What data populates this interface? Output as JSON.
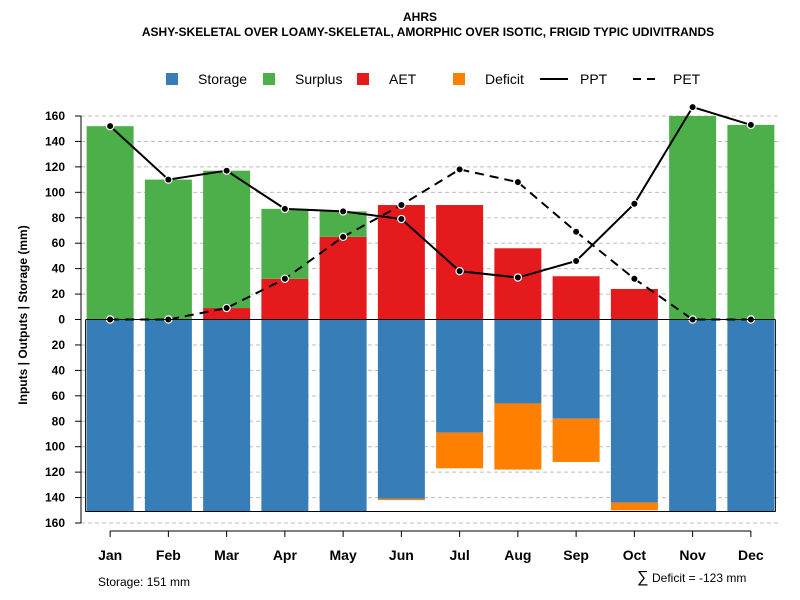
{
  "chart_data": {
    "type": "bar",
    "title": "AHRS",
    "subtitle": "ASHY-SKELETAL OVER LOAMY-SKELETAL, AMORPHIC OVER ISOTIC, FRIGID TYPIC UDIVITRANDS",
    "ylabel": "Inputs | Outputs | Storage    (mm)",
    "xlabel": "",
    "categories": [
      "Jan",
      "Feb",
      "Mar",
      "Apr",
      "May",
      "Jun",
      "Jul",
      "Aug",
      "Sep",
      "Oct",
      "Nov",
      "Dec"
    ],
    "ylim": [
      -160,
      160
    ],
    "yticks": [
      160,
      140,
      120,
      100,
      80,
      60,
      40,
      20,
      0,
      -20,
      -40,
      -60,
      -80,
      -100,
      -120,
      -140,
      -160
    ],
    "ytick_labels": [
      "160",
      "140",
      "120",
      "100",
      "80",
      "60",
      "40",
      "20",
      "0",
      "20",
      "40",
      "60",
      "80",
      "100",
      "120",
      "140",
      "160"
    ],
    "grid": true,
    "legend_position": "top",
    "legend": [
      {
        "label": "Storage",
        "kind": "box",
        "color": "#377EB8"
      },
      {
        "label": "Surplus",
        "kind": "box",
        "color": "#4DAF4A"
      },
      {
        "label": "AET",
        "kind": "box",
        "color": "#E41A1C"
      },
      {
        "label": "Deficit",
        "kind": "box",
        "color": "#FF7F00"
      },
      {
        "label": "PPT",
        "kind": "solid-line",
        "color": "#000000"
      },
      {
        "label": "PET",
        "kind": "dashed-line",
        "color": "#000000"
      }
    ],
    "series": [
      {
        "name": "AET",
        "color": "#E41A1C",
        "values": [
          0,
          0,
          9,
          32,
          65,
          90,
          90,
          56,
          34,
          24,
          0,
          0
        ]
      },
      {
        "name": "Surplus",
        "color": "#4DAF4A",
        "values": [
          152,
          110,
          108,
          55,
          20,
          0,
          0,
          0,
          0,
          0,
          160,
          153
        ]
      },
      {
        "name": "Storage",
        "color": "#377EB8",
        "values": [
          151,
          151,
          151,
          151,
          151,
          141,
          89,
          66,
          78,
          144,
          151,
          151
        ]
      },
      {
        "name": "Deficit",
        "color": "#FF7F00",
        "values": [
          0,
          0,
          0,
          0,
          0,
          1,
          28,
          52,
          34,
          6,
          0,
          0
        ]
      },
      {
        "name": "PPT",
        "color": "#000000",
        "values": [
          152,
          110,
          117,
          87,
          85,
          79,
          38,
          33,
          46,
          91,
          167,
          153
        ]
      },
      {
        "name": "PET",
        "color": "#000000",
        "values": [
          0,
          0,
          9,
          32,
          65,
          90,
          118,
          108,
          69,
          32,
          0,
          0
        ]
      }
    ],
    "storage_capacity": 151,
    "footer_left": "Storage: 151 mm",
    "footer_right_symbol": "∑",
    "footer_right": "Deficit = -123 mm"
  }
}
